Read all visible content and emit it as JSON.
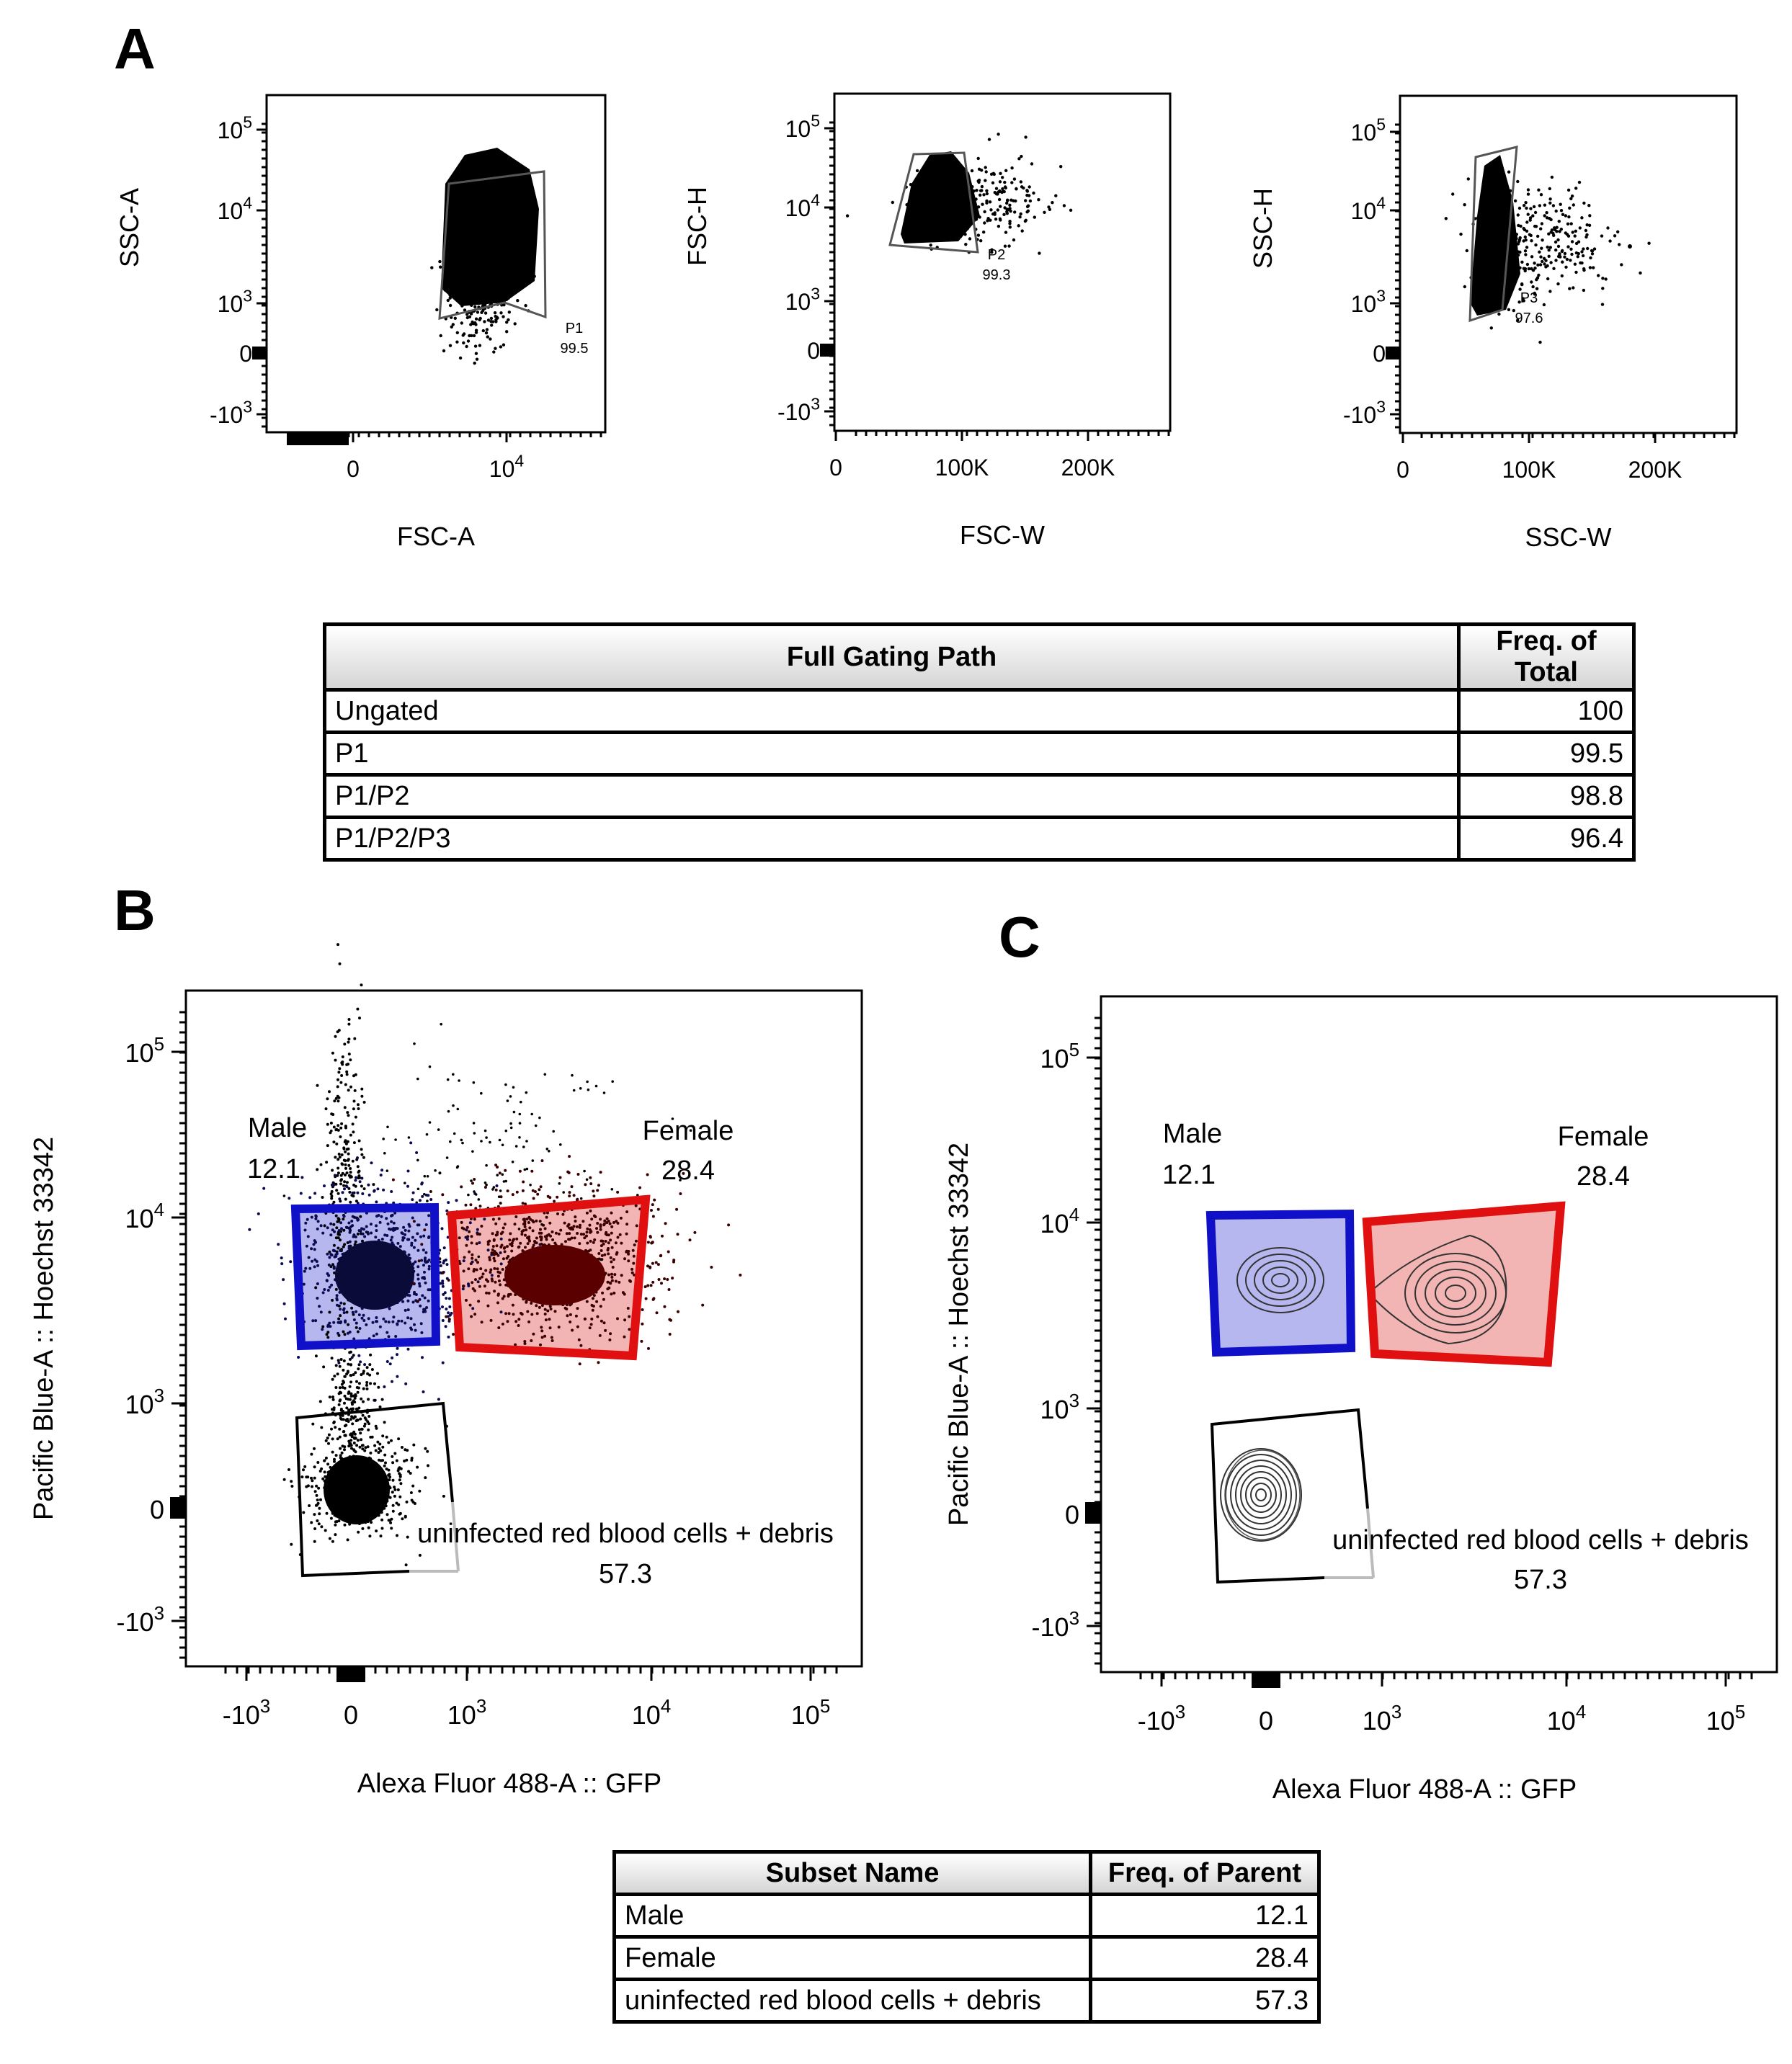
{
  "panels": {
    "a": "A",
    "b": "B",
    "c": "C"
  },
  "tick_labels": {
    "log5": [
      "-10",
      "3",
      "0",
      "10",
      "3",
      "10",
      "4",
      "10",
      "5"
    ]
  },
  "chart_data": [
    {
      "id": "A1",
      "type": "scatter",
      "xlabel": "FSC-A",
      "ylabel": "SSC-A",
      "x_ticks": [
        {
          "base": "0",
          "exp": ""
        },
        {
          "base": "10",
          "exp": "4"
        }
      ],
      "y_ticks": [
        {
          "base": "10",
          "exp": "5"
        },
        {
          "base": "10",
          "exp": "4"
        },
        {
          "base": "10",
          "exp": "3"
        },
        {
          "base": "0",
          "exp": ""
        },
        {
          "base": "-10",
          "exp": "3"
        }
      ],
      "x_scale": "biexponential",
      "y_scale": "biexponential",
      "gates": [
        {
          "name": "P1",
          "value": "99.5"
        }
      ]
    },
    {
      "id": "A2",
      "type": "scatter",
      "xlabel": "FSC-W",
      "ylabel": "FSC-H",
      "x_ticks": [
        {
          "base": "0",
          "exp": ""
        },
        {
          "base": "100K",
          "exp": ""
        },
        {
          "base": "200K",
          "exp": ""
        }
      ],
      "y_ticks": [
        {
          "base": "10",
          "exp": "5"
        },
        {
          "base": "10",
          "exp": "4"
        },
        {
          "base": "10",
          "exp": "3"
        },
        {
          "base": "0",
          "exp": ""
        },
        {
          "base": "-10",
          "exp": "3"
        }
      ],
      "x_scale": "linear",
      "y_scale": "biexponential",
      "gates": [
        {
          "name": "P2",
          "value": "99.3"
        }
      ]
    },
    {
      "id": "A3",
      "type": "scatter",
      "xlabel": "SSC-W",
      "ylabel": "SSC-H",
      "x_ticks": [
        {
          "base": "0",
          "exp": ""
        },
        {
          "base": "100K",
          "exp": ""
        },
        {
          "base": "200K",
          "exp": ""
        }
      ],
      "y_ticks": [
        {
          "base": "10",
          "exp": "5"
        },
        {
          "base": "10",
          "exp": "4"
        },
        {
          "base": "10",
          "exp": "3"
        },
        {
          "base": "0",
          "exp": ""
        },
        {
          "base": "-10",
          "exp": "3"
        }
      ],
      "x_scale": "linear",
      "y_scale": "biexponential",
      "gates": [
        {
          "name": "P3",
          "value": "97.6"
        }
      ]
    },
    {
      "id": "B",
      "type": "scatter",
      "xlabel": "Alexa Fluor 488-A :: GFP",
      "ylabel": "Pacific Blue-A :: Hoechst 33342",
      "x_ticks": [
        {
          "base": "-10",
          "exp": "3"
        },
        {
          "base": "0",
          "exp": ""
        },
        {
          "base": "10",
          "exp": "3"
        },
        {
          "base": "10",
          "exp": "4"
        },
        {
          "base": "10",
          "exp": "5"
        }
      ],
      "y_ticks": [
        {
          "base": "10",
          "exp": "5"
        },
        {
          "base": "10",
          "exp": "4"
        },
        {
          "base": "10",
          "exp": "3"
        },
        {
          "base": "0",
          "exp": ""
        },
        {
          "base": "-10",
          "exp": "3"
        }
      ],
      "x_scale": "biexponential",
      "y_scale": "biexponential",
      "gates": [
        {
          "name": "Male",
          "value": "12.1",
          "color": "#1010c8"
        },
        {
          "name": "Female",
          "value": "28.4",
          "color": "#e01010"
        },
        {
          "name": "uninfected red blood cells + debris",
          "value": "57.3",
          "color": "#000000"
        }
      ]
    },
    {
      "id": "C",
      "type": "contour",
      "xlabel": "Alexa Fluor 488-A :: GFP",
      "ylabel": "Pacific Blue-A :: Hoechst 33342",
      "x_ticks": [
        {
          "base": "-10",
          "exp": "3"
        },
        {
          "base": "0",
          "exp": ""
        },
        {
          "base": "10",
          "exp": "3"
        },
        {
          "base": "10",
          "exp": "4"
        },
        {
          "base": "10",
          "exp": "5"
        }
      ],
      "y_ticks": [
        {
          "base": "10",
          "exp": "5"
        },
        {
          "base": "10",
          "exp": "4"
        },
        {
          "base": "10",
          "exp": "3"
        },
        {
          "base": "0",
          "exp": ""
        },
        {
          "base": "-10",
          "exp": "3"
        }
      ],
      "x_scale": "biexponential",
      "y_scale": "biexponential",
      "gates": [
        {
          "name": "Male",
          "value": "12.1",
          "color": "#1010c8"
        },
        {
          "name": "Female",
          "value": "28.4",
          "color": "#e01010"
        },
        {
          "name": "uninfected red blood cells + debris",
          "value": "57.3",
          "color": "#000000"
        }
      ]
    },
    {
      "id": "table-gating",
      "type": "table",
      "columns": [
        "Full Gating Path",
        "Freq. of Total"
      ],
      "rows": [
        [
          "Ungated",
          "100"
        ],
        [
          "P1",
          "99.5"
        ],
        [
          "P1/P2",
          "98.8"
        ],
        [
          "P1/P2/P3",
          "96.4"
        ]
      ]
    },
    {
      "id": "table-subsets",
      "type": "table",
      "columns": [
        "Subset Name",
        "Freq. of Parent"
      ],
      "rows": [
        [
          "Male",
          "12.1"
        ],
        [
          "Female",
          "28.4"
        ],
        [
          "uninfected red blood cells + debris",
          "57.3"
        ]
      ]
    }
  ]
}
